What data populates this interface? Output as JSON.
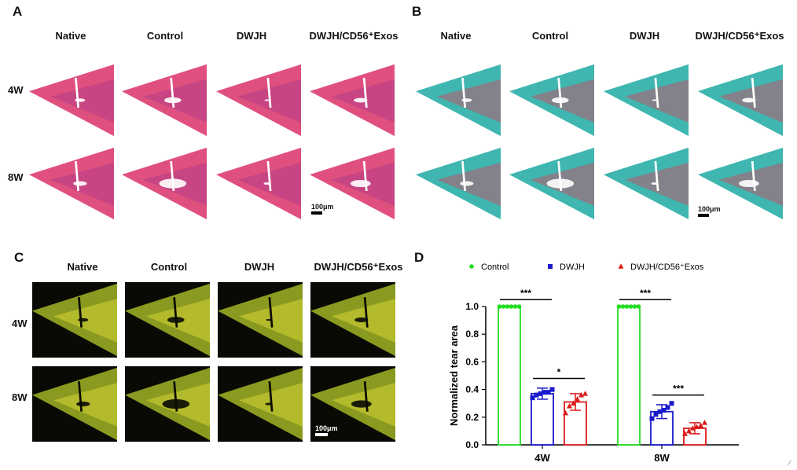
{
  "panels": {
    "a": {
      "label": "A",
      "columns": [
        "Native",
        "Control",
        "DWJH",
        "DWJH/CD56⁺Exos"
      ],
      "rows": [
        "4W",
        "8W"
      ],
      "scale": "100μm",
      "colors": {
        "background": "#ffffff",
        "tissue": "#e0507f",
        "tissue_dark": "#a8388a",
        "defect": "#ffffff"
      }
    },
    "b": {
      "label": "B",
      "columns": [
        "Native",
        "Control",
        "DWJH",
        "DWJH/CD56⁺Exos"
      ],
      "rows": [
        "4W",
        "8W"
      ],
      "scale": "100μm",
      "colors": {
        "background": "#ffffff",
        "tissue": "#3fb6b0",
        "tissue_dark": "#d8405a",
        "defect": "#ffffff"
      }
    },
    "c": {
      "label": "C",
      "columns": [
        "Native",
        "Control",
        "DWJH",
        "DWJH/CD56⁺Exos"
      ],
      "rows": [
        "4W",
        "8W"
      ],
      "scale": "100μm",
      "colors": {
        "background": "#0a0a05",
        "tissue": "#8a9a20",
        "tissue_dark": "#e4e23a",
        "defect": "#0a0a05"
      }
    },
    "d": {
      "label": "D"
    }
  },
  "chart_data": {
    "type": "bar",
    "categories": [
      "4W",
      "8W"
    ],
    "series": [
      {
        "name": "Control",
        "color": "#22dd22",
        "marker": "circle",
        "values": [
          1.0,
          1.0
        ],
        "sd": [
          0,
          0
        ],
        "points": [
          [
            1.0,
            1.0,
            1.0,
            1.0,
            1.0,
            1.0
          ],
          [
            1.0,
            1.0,
            1.0,
            1.0,
            1.0,
            1.0
          ]
        ]
      },
      {
        "name": "DWJH",
        "color": "#1a1acc",
        "marker": "square",
        "values": [
          0.37,
          0.24
        ],
        "sd": [
          0.04,
          0.05
        ],
        "points": [
          [
            0.34,
            0.36,
            0.37,
            0.38,
            0.38,
            0.4
          ],
          [
            0.19,
            0.22,
            0.24,
            0.25,
            0.27,
            0.3
          ]
        ]
      },
      {
        "name": "DWJH/CD56⁺Exos",
        "color": "#dd1a1a",
        "marker": "triangle",
        "values": [
          0.31,
          0.12
        ],
        "sd": [
          0.06,
          0.04
        ],
        "points": [
          [
            0.23,
            0.28,
            0.3,
            0.33,
            0.36,
            0.37
          ],
          [
            0.08,
            0.1,
            0.12,
            0.13,
            0.14,
            0.16
          ]
        ]
      }
    ],
    "ylabel": "Normalized tear area",
    "xlabel": "",
    "ylim": [
      0,
      1.0
    ],
    "yticks": [
      "0.0",
      "0.2",
      "0.4",
      "0.6",
      "0.8",
      "1.0"
    ],
    "legend": {
      "position": "top",
      "entries": [
        "Control",
        "DWJH",
        "DWJH/CD56⁺Exos"
      ]
    },
    "significance": [
      {
        "group": "4W",
        "from": "Control",
        "to": "DWJH",
        "label": "***"
      },
      {
        "group": "4W",
        "from": "DWJH",
        "to": "DWJH/CD56⁺Exos",
        "label": "*"
      },
      {
        "group": "8W",
        "from": "Control",
        "to": "DWJH",
        "label": "***"
      },
      {
        "group": "8W",
        "from": "DWJH",
        "to": "DWJH/CD56⁺Exos",
        "label": "***"
      }
    ]
  },
  "footer_mark": "⁄"
}
